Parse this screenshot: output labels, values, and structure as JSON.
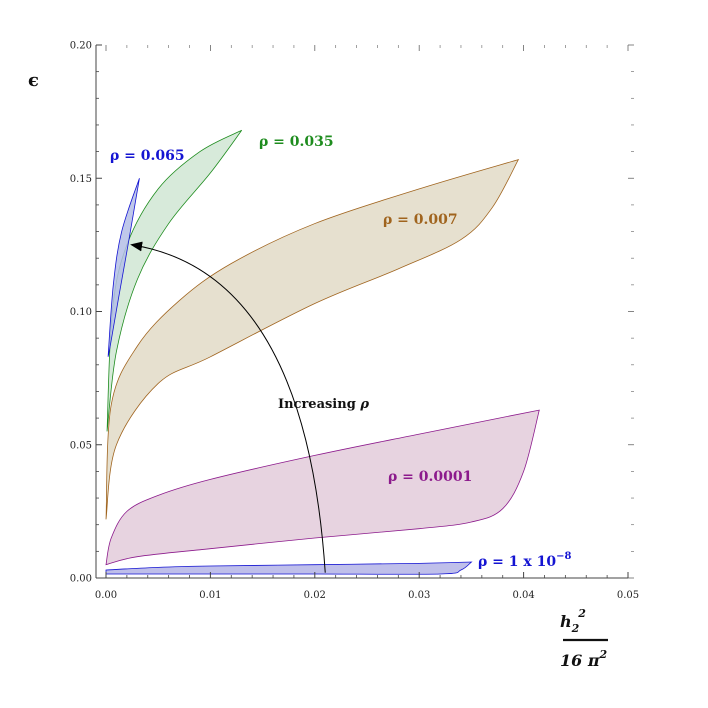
{
  "chart_data": {
    "type": "area",
    "title": "",
    "xlabel": {
      "num": "h",
      "num_sub": "2",
      "num_sup": "2",
      "den": "16 π",
      "den_sup": "2"
    },
    "ylabel": "ϵ",
    "xlim": [
      0,
      0.05
    ],
    "ylim": [
      0,
      0.2
    ],
    "xticks": [
      "0.00",
      "0.01",
      "0.02",
      "0.03",
      "0.04",
      "0.05"
    ],
    "yticks": [
      "0.00",
      "0.05",
      "0.10",
      "0.15",
      "0.20"
    ],
    "grid": false,
    "series": [
      {
        "name": "ρ = 1 x 10",
        "name_sup": "−8",
        "color": "#1414d2",
        "fill": "#b4b4e6",
        "upper": [
          [
            0.0,
            0.003
          ],
          [
            0.005,
            0.004
          ],
          [
            0.01,
            0.0045
          ],
          [
            0.02,
            0.005
          ],
          [
            0.03,
            0.0055
          ],
          [
            0.035,
            0.006
          ]
        ],
        "lower": [
          [
            0.035,
            0.006
          ],
          [
            0.034,
            0.003
          ],
          [
            0.032,
            0.0015
          ],
          [
            0.02,
            0.0015
          ],
          [
            0.01,
            0.0015
          ],
          [
            0.0,
            0.0015
          ]
        ]
      },
      {
        "name": "ρ = 0.0001",
        "color": "#8c1a8c",
        "fill": "#e3cbdb",
        "upper": [
          [
            0.0,
            0.005
          ],
          [
            0.0005,
            0.015
          ],
          [
            0.002,
            0.025
          ],
          [
            0.005,
            0.031
          ],
          [
            0.01,
            0.037
          ],
          [
            0.02,
            0.046
          ],
          [
            0.03,
            0.054
          ],
          [
            0.0415,
            0.063
          ]
        ],
        "lower": [
          [
            0.0415,
            0.063
          ],
          [
            0.04,
            0.04
          ],
          [
            0.038,
            0.026
          ],
          [
            0.035,
            0.021
          ],
          [
            0.03,
            0.0185
          ],
          [
            0.02,
            0.015
          ],
          [
            0.01,
            0.011
          ],
          [
            0.003,
            0.008
          ],
          [
            0.0,
            0.005
          ]
        ]
      },
      {
        "name": "ρ = 0.007",
        "color": "#a0641e",
        "fill": "#e2dbc7",
        "upper": [
          [
            0.0,
            0.022
          ],
          [
            0.0005,
            0.065
          ],
          [
            0.003,
            0.087
          ],
          [
            0.007,
            0.104
          ],
          [
            0.012,
            0.118
          ],
          [
            0.02,
            0.133
          ],
          [
            0.03,
            0.146
          ],
          [
            0.0395,
            0.157
          ]
        ],
        "lower": [
          [
            0.0395,
            0.157
          ],
          [
            0.037,
            0.139
          ],
          [
            0.034,
            0.127
          ],
          [
            0.028,
            0.116
          ],
          [
            0.02,
            0.103
          ],
          [
            0.01,
            0.083
          ],
          [
            0.005,
            0.073
          ],
          [
            0.001,
            0.05
          ],
          [
            0.0,
            0.022
          ]
        ]
      },
      {
        "name": "ρ = 0.035",
        "color": "#1e8c1e",
        "fill": "#d0e6d3",
        "upper": [
          [
            0.0001,
            0.055
          ],
          [
            0.0006,
            0.1
          ],
          [
            0.002,
            0.125
          ],
          [
            0.005,
            0.146
          ],
          [
            0.009,
            0.16
          ],
          [
            0.013,
            0.168
          ]
        ],
        "lower": [
          [
            0.013,
            0.168
          ],
          [
            0.01,
            0.152
          ],
          [
            0.006,
            0.133
          ],
          [
            0.003,
            0.112
          ],
          [
            0.001,
            0.085
          ],
          [
            0.0001,
            0.055
          ]
        ]
      },
      {
        "name": "ρ = 0.065",
        "color": "#1414d2",
        "fill": "#b4bee6",
        "upper": [
          [
            0.0002,
            0.083
          ],
          [
            0.0007,
            0.11
          ],
          [
            0.0015,
            0.13
          ],
          [
            0.0032,
            0.15
          ]
        ],
        "lower": [
          [
            0.0032,
            0.15
          ],
          [
            0.0022,
            0.127
          ],
          [
            0.0012,
            0.105
          ],
          [
            0.0004,
            0.087
          ],
          [
            0.0002,
            0.083
          ]
        ]
      }
    ],
    "annotations": [
      {
        "text": "Increasing ",
        "italic_symbol": "ρ",
        "from": [
          0.021,
          0.002
        ],
        "to": [
          0.0025,
          0.125
        ]
      }
    ]
  }
}
